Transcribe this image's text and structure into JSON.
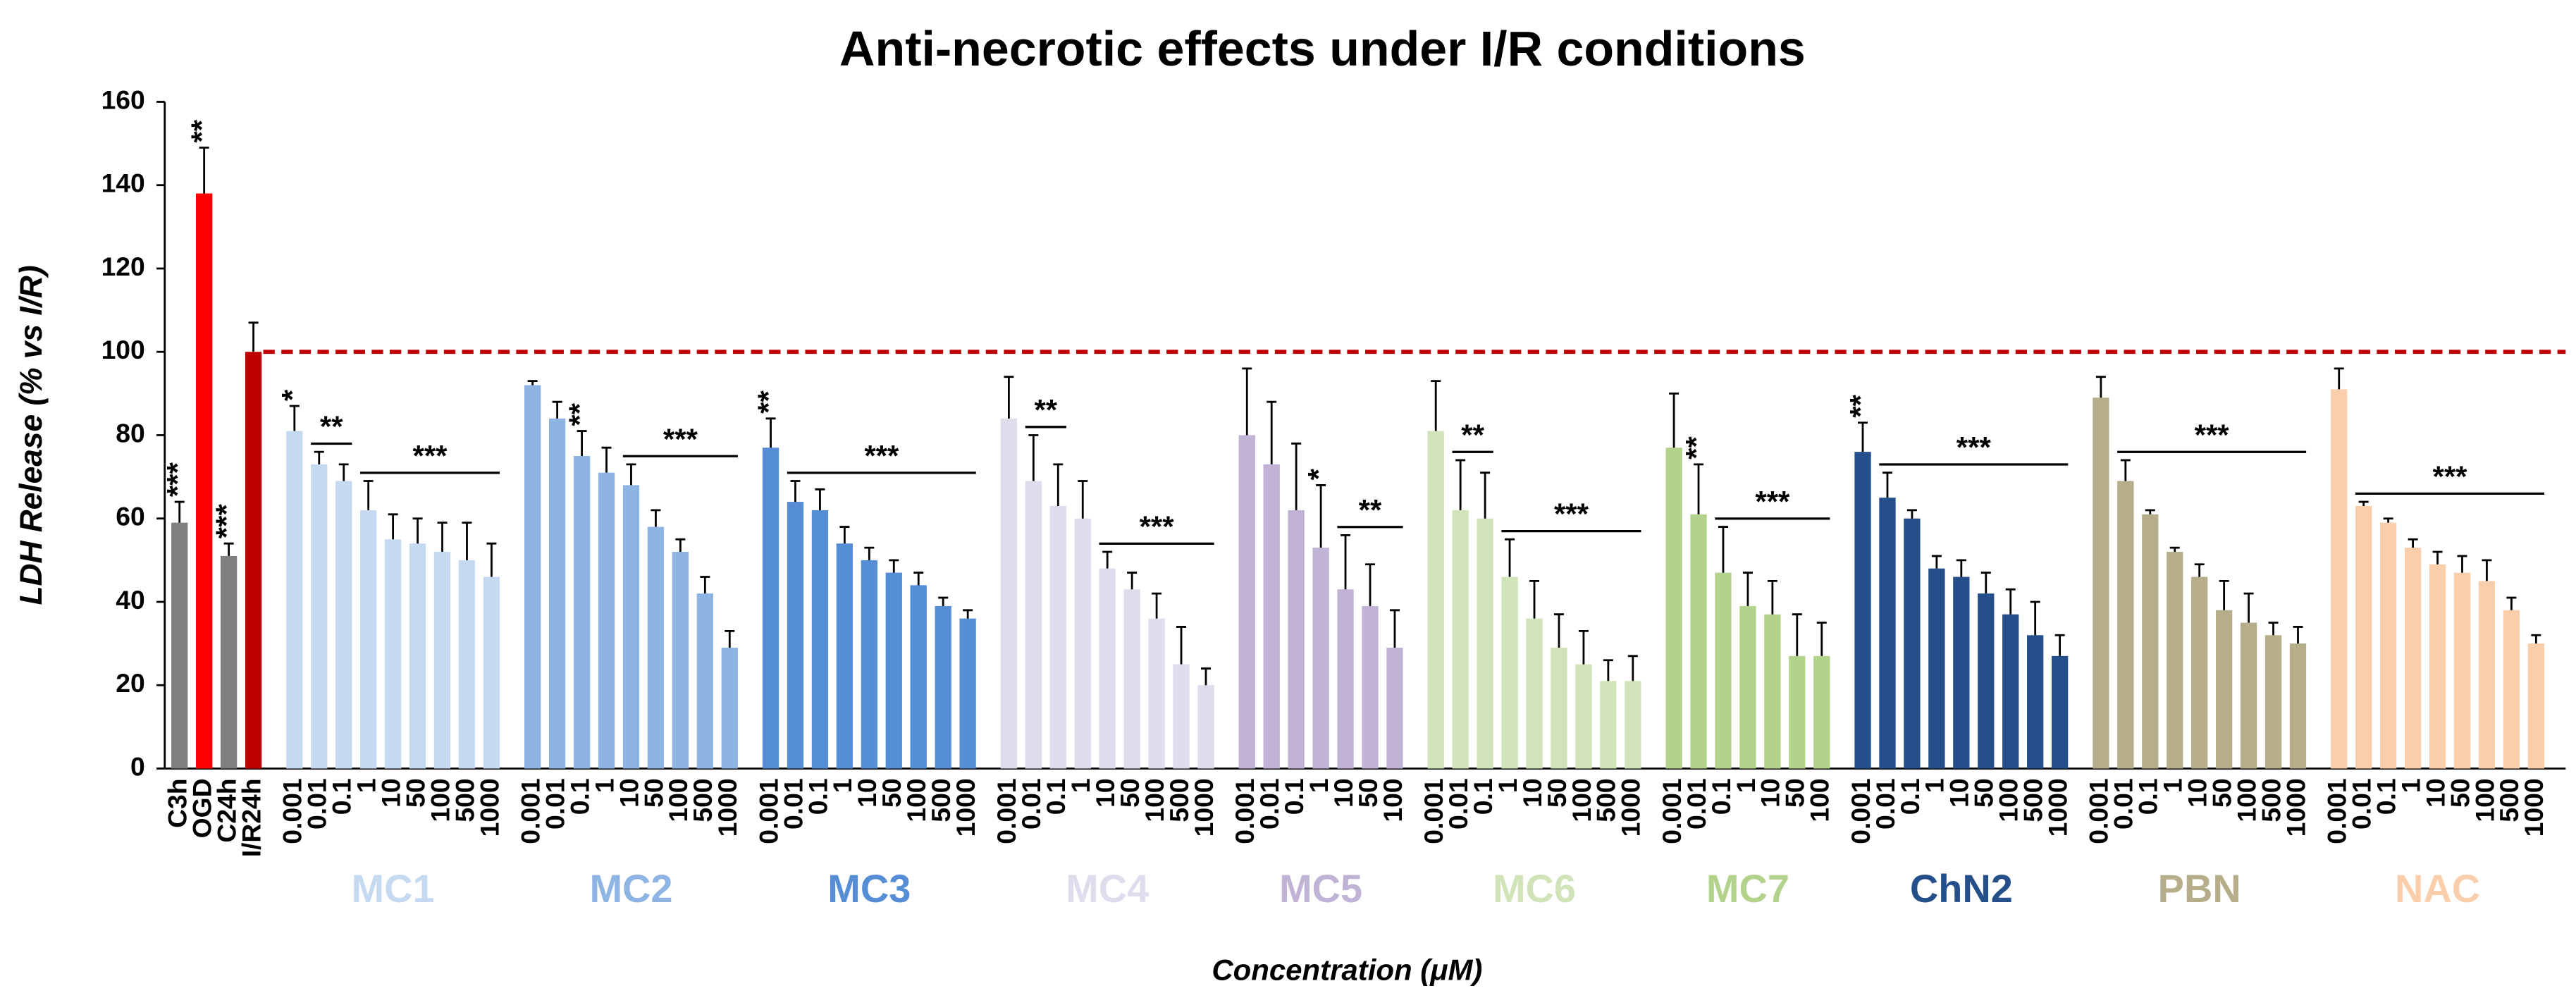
{
  "chart_data": {
    "type": "grouped-bar",
    "title": "Anti-necrotic effects under I/R conditions",
    "y_label": "LDH Release (% vs I/R)",
    "x_label": "Concentration (μM)",
    "ylim": [
      0,
      160
    ],
    "yticks": [
      0,
      20,
      40,
      60,
      80,
      100,
      120,
      140,
      160
    ],
    "reference_line": {
      "value": 100,
      "color": "#c00000"
    },
    "groups": [
      {
        "colors": [
          "#7f7f7f",
          "#ff0000",
          "#7f7f7f",
          "#c00000"
        ],
        "categories": [
          "C3h",
          "OGD",
          "C24h",
          "I/R24h"
        ],
        "values": [
          59,
          138,
          51,
          100
        ],
        "errors": [
          5,
          11,
          3,
          7
        ],
        "annotations": [
          {
            "text": "***",
            "from": 0,
            "to": 0
          },
          {
            "text": "**",
            "from": 1,
            "to": 1
          },
          {
            "text": "***",
            "from": 2,
            "to": 2
          }
        ]
      },
      {
        "name": "MC1",
        "color": "#c5d9f1",
        "categories": [
          "0.001",
          "0.01",
          "0.1",
          "1",
          "10",
          "50",
          "100",
          "500",
          "1000"
        ],
        "values": [
          81,
          73,
          69,
          62,
          55,
          54,
          52,
          50,
          46
        ],
        "errors": [
          6,
          3,
          4,
          7,
          6,
          6,
          7,
          9,
          8
        ],
        "annotations": [
          {
            "text": "*",
            "from": 0,
            "to": 0
          },
          {
            "text": "**",
            "from": 1,
            "to": 2
          },
          {
            "text": "***",
            "from": 3,
            "to": 8
          }
        ]
      },
      {
        "name": "MC2",
        "color": "#8db4e2",
        "categories": [
          "0.001",
          "0.01",
          "0.1",
          "1",
          "10",
          "50",
          "100",
          "500",
          "1000"
        ],
        "values": [
          92,
          84,
          75,
          71,
          68,
          58,
          52,
          42,
          29
        ],
        "errors": [
          1,
          4,
          6,
          6,
          5,
          4,
          3,
          4,
          4
        ],
        "annotations": [
          {
            "text": "**",
            "from": 2,
            "to": 2
          },
          {
            "text": "***",
            "from": 4,
            "to": 8
          }
        ]
      },
      {
        "name": "MC3",
        "color": "#558ed5",
        "categories": [
          "0.001",
          "0.01",
          "0.1",
          "1",
          "10",
          "50",
          "100",
          "500",
          "1000"
        ],
        "values": [
          77,
          64,
          62,
          54,
          50,
          47,
          44,
          39,
          36
        ],
        "errors": [
          7,
          5,
          5,
          4,
          3,
          3,
          3,
          2,
          2
        ],
        "annotations": [
          {
            "text": "**",
            "from": 0,
            "to": 0
          },
          {
            "text": "***",
            "from": 1,
            "to": 8
          }
        ]
      },
      {
        "name": "MC4",
        "color": "#e0dcee",
        "categories": [
          "0.001",
          "0.01",
          "0.1",
          "1",
          "10",
          "50",
          "100",
          "500",
          "1000"
        ],
        "values": [
          84,
          69,
          63,
          60,
          48,
          43,
          36,
          25,
          20
        ],
        "errors": [
          10,
          11,
          10,
          9,
          4,
          4,
          6,
          9,
          4
        ],
        "annotations": [
          {
            "text": "**",
            "from": 1,
            "to": 2
          },
          {
            "text": "***",
            "from": 4,
            "to": 8
          }
        ]
      },
      {
        "name": "MC5",
        "color": "#c0b3d6",
        "categories": [
          "0.001",
          "0.01",
          "0.1",
          "1",
          "10",
          "50",
          "100"
        ],
        "values": [
          80,
          73,
          62,
          53,
          43,
          39,
          29
        ],
        "errors": [
          16,
          15,
          16,
          15,
          13,
          10,
          9
        ],
        "annotations": [
          {
            "text": "*",
            "from": 3,
            "to": 3
          },
          {
            "text": "**",
            "from": 4,
            "to": 6
          }
        ]
      },
      {
        "name": "MC6",
        "color": "#d1e3b8",
        "categories": [
          "0.001",
          "0.01",
          "0.1",
          "1",
          "10",
          "50",
          "100",
          "500",
          "1000"
        ],
        "values": [
          81,
          62,
          60,
          46,
          36,
          29,
          25,
          21,
          21
        ],
        "errors": [
          12,
          12,
          11,
          9,
          9,
          8,
          8,
          5,
          6
        ],
        "annotations": [
          {
            "text": "**",
            "from": 1,
            "to": 2
          },
          {
            "text": "***",
            "from": 3,
            "to": 8
          }
        ]
      },
      {
        "name": "MC7",
        "color": "#b3d38c",
        "categories": [
          "0.001",
          "0.01",
          "0.1",
          "1",
          "10",
          "50",
          "100"
        ],
        "values": [
          77,
          61,
          47,
          39,
          37,
          27,
          27
        ],
        "errors": [
          13,
          12,
          11,
          8,
          8,
          10,
          8
        ],
        "annotations": [
          {
            "text": "**",
            "from": 1,
            "to": 1
          },
          {
            "text": "***",
            "from": 2,
            "to": 6
          }
        ]
      },
      {
        "name": "ChN2",
        "color": "#244f8a",
        "categories": [
          "0.001",
          "0.01",
          "0.1",
          "1",
          "10",
          "50",
          "100",
          "500",
          "1000"
        ],
        "values": [
          76,
          65,
          60,
          48,
          46,
          42,
          37,
          32,
          27
        ],
        "errors": [
          7,
          6,
          2,
          3,
          4,
          5,
          6,
          8,
          5
        ],
        "annotations": [
          {
            "text": "**",
            "from": 0,
            "to": 0
          },
          {
            "text": "***",
            "from": 1,
            "to": 8
          }
        ]
      },
      {
        "name": "PBN",
        "color": "#b6ae8a",
        "categories": [
          "0.001",
          "0.01",
          "0.1",
          "1",
          "10",
          "50",
          "100",
          "500",
          "1000"
        ],
        "values": [
          89,
          69,
          61,
          52,
          46,
          38,
          35,
          32,
          30
        ],
        "errors": [
          5,
          5,
          1,
          1,
          3,
          7,
          7,
          3,
          4
        ],
        "annotations": [
          {
            "text": "***",
            "from": 1,
            "to": 8
          }
        ]
      },
      {
        "name": "NAC",
        "color": "#fbceab",
        "categories": [
          "0.001",
          "0.01",
          "0.1",
          "1",
          "10",
          "50",
          "100",
          "500",
          "1000"
        ],
        "values": [
          91,
          63,
          59,
          53,
          49,
          47,
          45,
          38,
          30
        ],
        "errors": [
          5,
          1,
          1,
          2,
          3,
          4,
          5,
          3,
          2
        ],
        "annotations": [
          {
            "text": "***",
            "from": 1,
            "to": 8
          }
        ]
      }
    ]
  }
}
